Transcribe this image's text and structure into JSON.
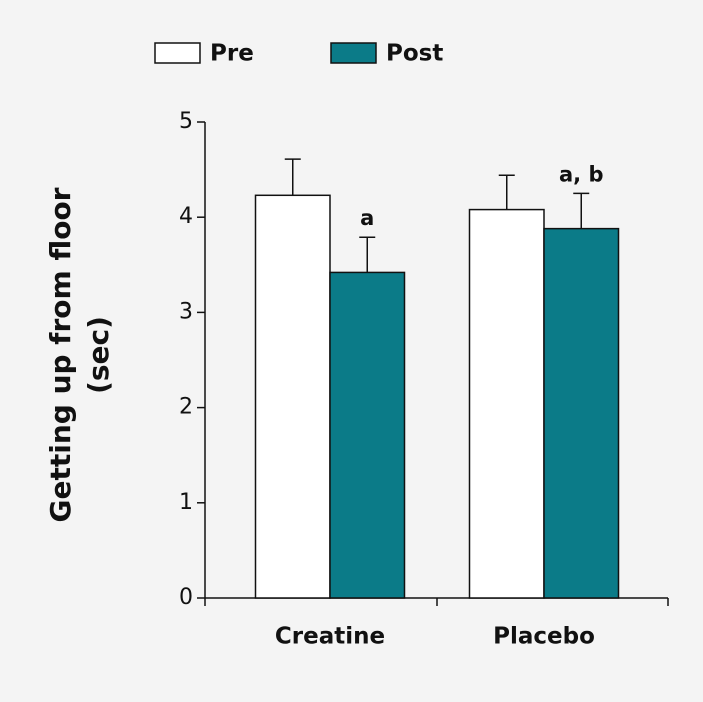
{
  "chart_data": {
    "type": "bar",
    "ylabel": [
      "Getting up from floor",
      "(sec)"
    ],
    "categories": [
      "Creatine",
      "Placebo"
    ],
    "series": [
      {
        "name": "Pre",
        "color": "#ffffff",
        "values": [
          4.23,
          4.08
        ],
        "errors": [
          0.38,
          0.36
        ]
      },
      {
        "name": "Post",
        "color": "#0b7b88",
        "values": [
          3.42,
          3.88
        ],
        "errors": [
          0.37,
          0.37
        ]
      }
    ],
    "annotations": [
      {
        "category": "Creatine",
        "series": "Post",
        "text": "a"
      },
      {
        "category": "Placebo",
        "series": "Post",
        "text": "a, b"
      }
    ],
    "ylim": [
      0,
      5
    ],
    "yticks": [
      0,
      1,
      2,
      3,
      4,
      5
    ],
    "grid": false
  }
}
